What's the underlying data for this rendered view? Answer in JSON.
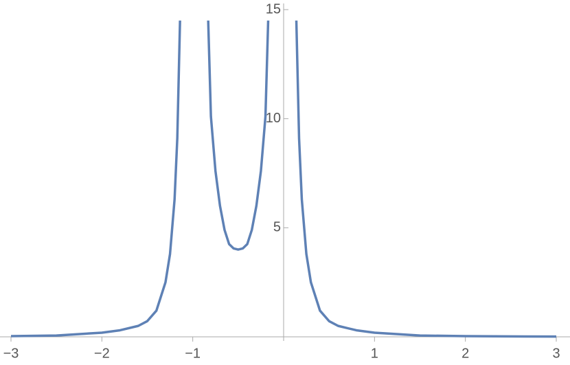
{
  "chart_data": {
    "type": "line",
    "x": [
      -3,
      -2.5,
      -2,
      -1.8,
      -1.6,
      -1.5,
      -1.4,
      -1.3,
      -1.25,
      -1.2,
      -1.17,
      -1.14,
      -1,
      -0.83,
      -0.8,
      -0.75,
      -0.7,
      -0.65,
      -0.6,
      -0.55,
      -0.5,
      -0.45,
      -0.4,
      -0.35,
      -0.3,
      -0.25,
      -0.2,
      -0.17,
      0,
      0.14,
      0.17,
      0.2,
      0.25,
      0.3,
      0.4,
      0.5,
      0.6,
      0.8,
      1,
      1.5,
      2,
      3
    ],
    "series": [
      {
        "color": "#5e81b5",
        "values": [
          0.03,
          0.06,
          0.19,
          0.3,
          0.5,
          0.72,
          1.2,
          2.5,
          3.8,
          6.3,
          9.1,
          14.5,
          null,
          14.5,
          10.1,
          7.6,
          6.0,
          4.9,
          4.25,
          4.05,
          4.0,
          4.05,
          4.25,
          4.9,
          6.0,
          7.6,
          10.1,
          14.5,
          null,
          14.5,
          9.1,
          6.3,
          3.8,
          2.5,
          1.2,
          0.72,
          0.5,
          0.3,
          0.19,
          0.06,
          0.03,
          0.01
        ]
      }
    ],
    "xlim": [
      -3,
      3
    ],
    "ylim": [
      0,
      15
    ],
    "xticks": [
      {
        "value": -3,
        "label": "−3"
      },
      {
        "value": -2,
        "label": "−2"
      },
      {
        "value": -1,
        "label": "−1"
      },
      1,
      2,
      3
    ],
    "yticks": [
      5,
      10,
      15
    ]
  }
}
